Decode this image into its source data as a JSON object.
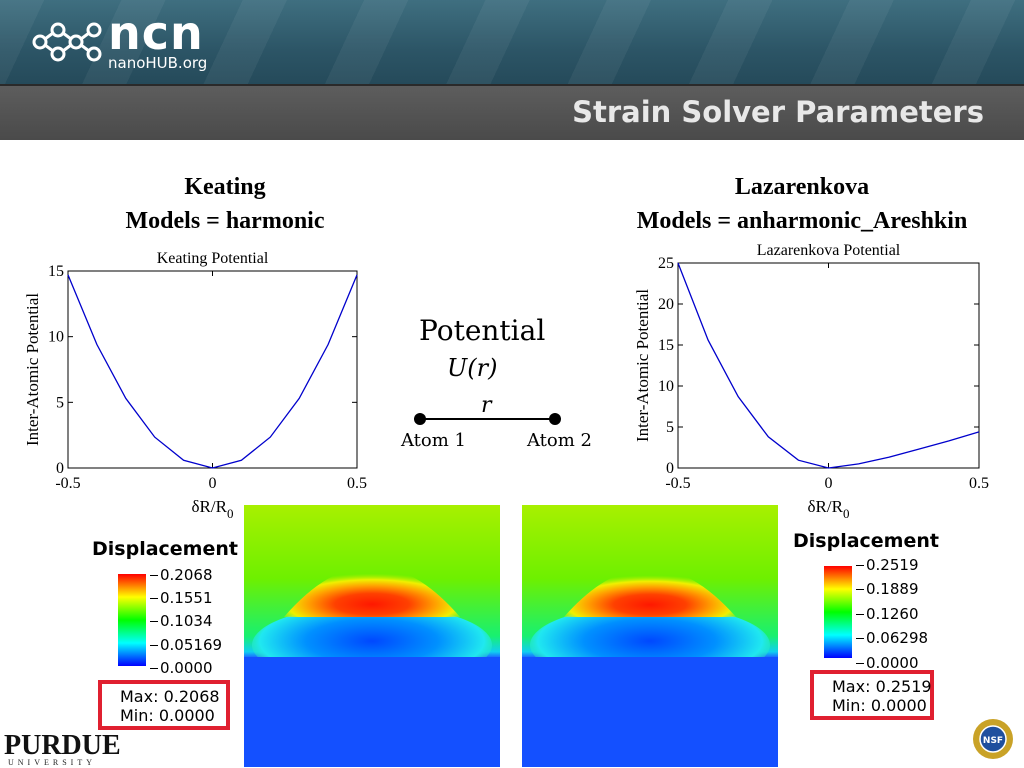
{
  "header": {
    "logo_text": "ncn",
    "logo_sub": "nanoHUB.org",
    "slide_title": "Strain Solver Parameters"
  },
  "left": {
    "heading_line1": "Keating",
    "heading_line2": "Models = harmonic"
  },
  "right": {
    "heading_line1": "Lazarenkova",
    "heading_line2": "Models =  anharmonic_Areshkin"
  },
  "potential_diagram": {
    "title": "Potential",
    "formula": "U(r)",
    "bond_label": "r",
    "atom1": "Atom 1",
    "atom2": "Atom 2"
  },
  "chart_data": [
    {
      "type": "line",
      "title": "Keating Potential",
      "xlabel": "δR/R0",
      "ylabel": "Inter-Atomic Potential",
      "xlim": [
        -0.5,
        0.5
      ],
      "ylim": [
        0,
        15
      ],
      "xticks": [
        "-0.5",
        "0",
        "0.5"
      ],
      "yticks": [
        "0",
        "5",
        "10",
        "15"
      ],
      "grid": false,
      "series": [
        {
          "color": "#0000cc",
          "x": [
            -0.5,
            -0.4,
            -0.3,
            -0.2,
            -0.1,
            0,
            0.1,
            0.2,
            0.3,
            0.4,
            0.5
          ],
          "y": [
            14.7,
            9.4,
            5.3,
            2.35,
            0.59,
            0,
            0.59,
            2.35,
            5.3,
            9.4,
            14.7
          ]
        }
      ]
    },
    {
      "type": "line",
      "title": "Lazarenkova Potential",
      "xlabel": "δR/R0",
      "ylabel": "Inter-Atomic Potential",
      "xlim": [
        -0.5,
        0.5
      ],
      "ylim": [
        0,
        25
      ],
      "xticks": [
        "-0.5",
        "0",
        "0.5"
      ],
      "yticks": [
        "0",
        "5",
        "10",
        "15",
        "20",
        "25"
      ],
      "grid": false,
      "series": [
        {
          "color": "#0000cc",
          "x": [
            -0.5,
            -0.4,
            -0.3,
            -0.2,
            -0.1,
            0,
            0.1,
            0.2,
            0.3,
            0.4,
            0.5
          ],
          "y": [
            25,
            15.6,
            8.7,
            3.8,
            0.95,
            0,
            0.5,
            1.3,
            2.3,
            3.3,
            4.4
          ]
        }
      ]
    },
    {
      "type": "heatmap",
      "legend_title": "Displacement",
      "colorbar_ticks": [
        "0.2068",
        "0.1551",
        "0.1034",
        "0.05169",
        "0.0000"
      ],
      "max_label": "Max:",
      "max": "0.2068",
      "min_label": "Min:",
      "min": "0.0000"
    },
    {
      "type": "heatmap",
      "legend_title": "Displacement",
      "colorbar_ticks": [
        "0.2519",
        "0.1889",
        "0.1260",
        "0.06298",
        "0.0000"
      ],
      "max_label": "Max:",
      "max": "0.2519",
      "min_label": "Min:",
      "min": "0.0000"
    }
  ],
  "footer": {
    "purdue_name": "PURDUE",
    "purdue_sub": "UNIVERSITY",
    "nsf_label": "NSF"
  },
  "icons": [
    "ncn-molecule-logo",
    "purdue-logo",
    "nsf-logo"
  ]
}
